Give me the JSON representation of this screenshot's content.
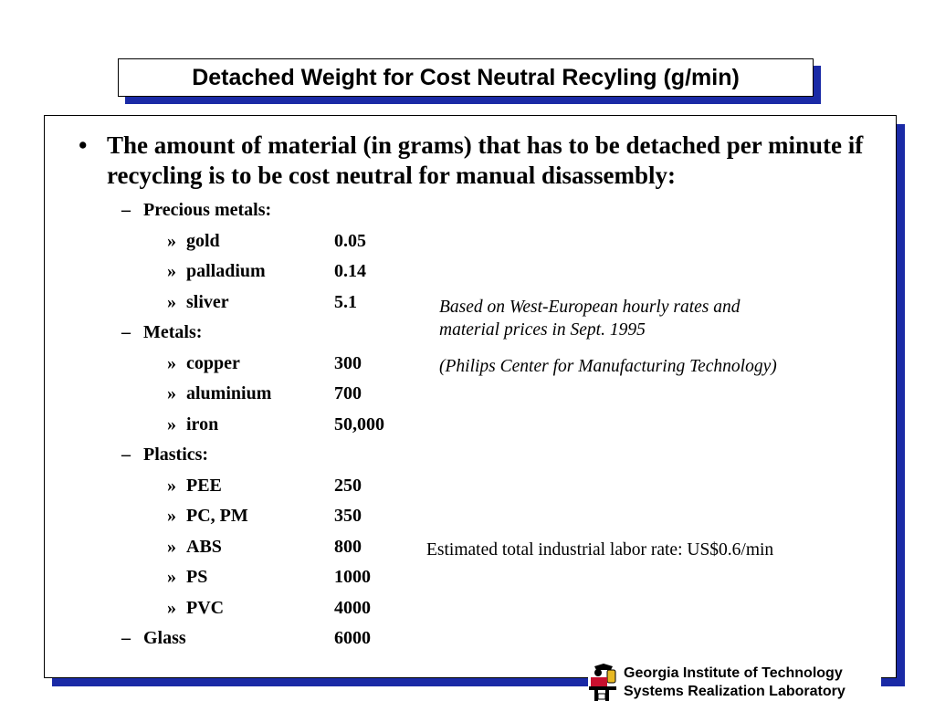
{
  "title": "Detached Weight for Cost Neutral Recyling (g/min)",
  "main_bullet": {
    "symbol": "•",
    "text": "The amount of material (in grams) that has to be detached per minute if recycling is to be cost neutral for manual disassembly:"
  },
  "list": {
    "dash_symbol": "–",
    "sub_symbol": "»",
    "groups": [
      {
        "label": "Precious metals:",
        "items": [
          {
            "name": "gold",
            "value": "0.05"
          },
          {
            "name": "palladium",
            "value": "0.14"
          },
          {
            "name": "sliver",
            "value": "5.1"
          }
        ]
      },
      {
        "label": "Metals:",
        "items": [
          {
            "name": "copper",
            "value": "300"
          },
          {
            "name": "aluminium",
            "value": "700"
          },
          {
            "name": "iron",
            "value": "50,000"
          }
        ]
      },
      {
        "label": "Plastics:",
        "items": [
          {
            "name": "PEE",
            "value": "250"
          },
          {
            "name": "PC, PM",
            "value": "350"
          },
          {
            "name": "ABS",
            "value": "800"
          },
          {
            "name": "PS",
            "value": "1000"
          },
          {
            "name": "PVC",
            "value": "4000"
          }
        ]
      },
      {
        "label": "Glass",
        "value": "6000"
      }
    ]
  },
  "notes": {
    "line1": "Based on West-European hourly rates and",
    "line2": "material prices in Sept. 1995",
    "source": "(Philips Center for Manufacturing Technology)"
  },
  "labor_rate": "Estimated total industrial labor rate:  US$0.6/min",
  "footer": {
    "line1": "Georgia Institute of Technology",
    "line2": "Systems Realization Laboratory"
  },
  "colors": {
    "accent": "#1a2aa6",
    "logo_red": "#c8102e",
    "logo_gold": "#e8b923"
  }
}
